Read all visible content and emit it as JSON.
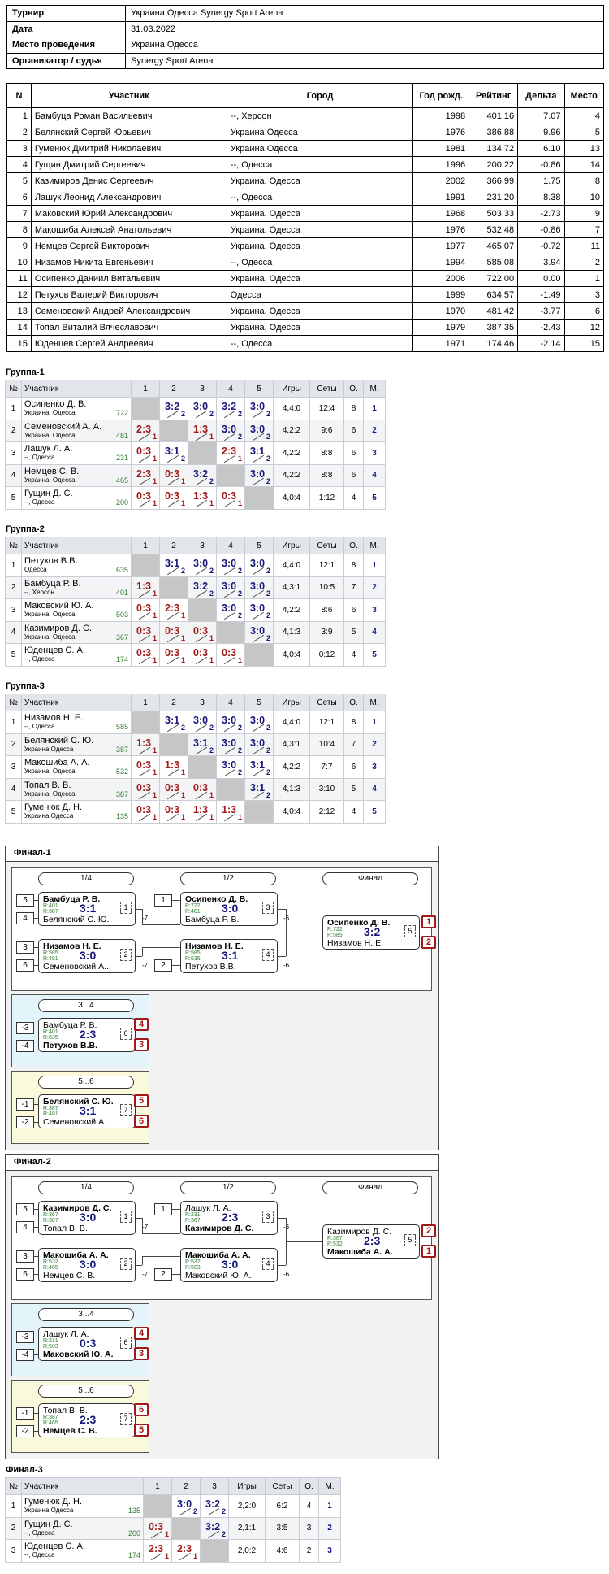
{
  "info": {
    "rows": [
      {
        "k": "Турнир",
        "v": "Украина Одесса Synergy Sport Arena"
      },
      {
        "k": "Дата",
        "v": "31.03.2022"
      },
      {
        "k": "Место проведения",
        "v": "Украина Одесса"
      },
      {
        "k": "Организатор / судья",
        "v": "Synergy Sport Arena"
      }
    ]
  },
  "players": {
    "headers": [
      "N",
      "Участник",
      "Город",
      "Год рожд.",
      "Рейтинг",
      "Дельта",
      "Место"
    ],
    "rows": [
      [
        "1",
        "Бамбуца Роман Васильевич",
        "--, Херсон",
        "1998",
        "401.16",
        "7.07",
        "4"
      ],
      [
        "2",
        "Белянский Сергей Юрьевич",
        "Украина Одесса",
        "1976",
        "386.88",
        "9.96",
        "5"
      ],
      [
        "3",
        "Гуменюк Дмитрий Николаевич",
        "Украина Одесса",
        "1981",
        "134.72",
        "6.10",
        "13"
      ],
      [
        "4",
        "Гущин Дмитрий Сергеевич",
        "--, Одесса",
        "1996",
        "200.22",
        "-0.86",
        "14"
      ],
      [
        "5",
        "Казимиров Денис Сергеевич",
        "Украина, Одесса",
        "2002",
        "366.99",
        "1.75",
        "8"
      ],
      [
        "6",
        "Лашук Леонид Александрович",
        "--, Одесса",
        "1991",
        "231.20",
        "8.38",
        "10"
      ],
      [
        "7",
        "Маковский Юрий Александрович",
        "Украина, Одесса",
        "1968",
        "503.33",
        "-2.73",
        "9"
      ],
      [
        "8",
        "Макошиба Алексей Анатольевич",
        "Украина, Одесса",
        "1976",
        "532.48",
        "-0.86",
        "7"
      ],
      [
        "9",
        "Немцев Сергей Викторович",
        "Украина, Одесса",
        "1977",
        "465.07",
        "-0.72",
        "11"
      ],
      [
        "10",
        "Низамов Никита Евгеньевич",
        "--, Одесса",
        "1994",
        "585.08",
        "3.94",
        "2"
      ],
      [
        "11",
        "Осипенко Даниил Витальевич",
        "Украина, Одесса",
        "2006",
        "722.00",
        "0.00",
        "1"
      ],
      [
        "12",
        "Петухов Валерий Викторович",
        "Одесса",
        "1999",
        "634.57",
        "-1.49",
        "3"
      ],
      [
        "13",
        "Семеновский Андрей Александрович",
        "Украина, Одесса",
        "1970",
        "481.42",
        "-3.77",
        "6"
      ],
      [
        "14",
        "Топал Виталий Вячеславович",
        "Украина, Одесса",
        "1979",
        "387.35",
        "-2.43",
        "12"
      ],
      [
        "15",
        "Юденцев Сергей Андреевич",
        "--, Одесса",
        "1971",
        "174.46",
        "-2.14",
        "15"
      ]
    ]
  },
  "groups": [
    {
      "title": "Группа-1",
      "headers": [
        "№",
        "Участник",
        "1",
        "2",
        "3",
        "4",
        "5",
        "Игры",
        "Сеты",
        "О.",
        "М."
      ],
      "rows": [
        {
          "n": "1",
          "name": "Осипенко Д. В.",
          "city": "Украина, Одесса",
          "rating": "722",
          "cells": [
            null,
            [
              "3:2",
              "2",
              "w"
            ],
            [
              "3:0",
              "2",
              "w"
            ],
            [
              "3:2",
              "2",
              "w"
            ],
            [
              "3:0",
              "2",
              "w"
            ]
          ],
          "games": "4,4:0",
          "sets": "12:4",
          "pts": "8",
          "place": "1"
        },
        {
          "n": "2",
          "name": "Семеновский А. А.",
          "city": "Украина, Одесса",
          "rating": "481",
          "cells": [
            [
              "2:3",
              "1",
              "l"
            ],
            null,
            [
              "1:3",
              "1",
              "l"
            ],
            [
              "3:0",
              "2",
              "w"
            ],
            [
              "3:0",
              "2",
              "w"
            ]
          ],
          "games": "4,2:2",
          "sets": "9:6",
          "pts": "6",
          "place": "2"
        },
        {
          "n": "3",
          "name": "Лашук Л. А.",
          "city": "--, Одесса",
          "rating": "231",
          "cells": [
            [
              "0:3",
              "1",
              "l"
            ],
            [
              "3:1",
              "2",
              "w"
            ],
            null,
            [
              "2:3",
              "1",
              "l"
            ],
            [
              "3:1",
              "2",
              "w"
            ]
          ],
          "games": "4,2:2",
          "sets": "8:8",
          "pts": "6",
          "place": "3"
        },
        {
          "n": "4",
          "name": "Немцев С. В.",
          "city": "Украина, Одесса",
          "rating": "465",
          "cells": [
            [
              "2:3",
              "1",
              "l"
            ],
            [
              "0:3",
              "1",
              "l"
            ],
            [
              "3:2",
              "2",
              "w"
            ],
            null,
            [
              "3:0",
              "2",
              "w"
            ]
          ],
          "games": "4,2:2",
          "sets": "8:8",
          "pts": "6",
          "place": "4"
        },
        {
          "n": "5",
          "name": "Гущин Д. С.",
          "city": "--, Одесса",
          "rating": "200",
          "cells": [
            [
              "0:3",
              "1",
              "l"
            ],
            [
              "0:3",
              "1",
              "l"
            ],
            [
              "1:3",
              "1",
              "l"
            ],
            [
              "0:3",
              "1",
              "l"
            ],
            null
          ],
          "games": "4,0:4",
          "sets": "1:12",
          "pts": "4",
          "place": "5"
        }
      ]
    },
    {
      "title": "Группа-2",
      "headers": [
        "№",
        "Участник",
        "1",
        "2",
        "3",
        "4",
        "5",
        "Игры",
        "Сеты",
        "О.",
        "М."
      ],
      "rows": [
        {
          "n": "1",
          "name": "Петухов В.В.",
          "city": "Одесса",
          "rating": "635",
          "cells": [
            null,
            [
              "3:1",
              "2",
              "w"
            ],
            [
              "3:0",
              "2",
              "w"
            ],
            [
              "3:0",
              "2",
              "w"
            ],
            [
              "3:0",
              "2",
              "w"
            ]
          ],
          "games": "4,4:0",
          "sets": "12:1",
          "pts": "8",
          "place": "1"
        },
        {
          "n": "2",
          "name": "Бамбуца Р. В.",
          "city": "--, Херсон",
          "rating": "401",
          "cells": [
            [
              "1:3",
              "1",
              "l"
            ],
            null,
            [
              "3:2",
              "2",
              "w"
            ],
            [
              "3:0",
              "2",
              "w"
            ],
            [
              "3:0",
              "2",
              "w"
            ]
          ],
          "games": "4,3:1",
          "sets": "10:5",
          "pts": "7",
          "place": "2"
        },
        {
          "n": "3",
          "name": "Маковский Ю. А.",
          "city": "Украина, Одесса",
          "rating": "503",
          "cells": [
            [
              "0:3",
              "1",
              "l"
            ],
            [
              "2:3",
              "1",
              "l"
            ],
            null,
            [
              "3:0",
              "2",
              "w"
            ],
            [
              "3:0",
              "2",
              "w"
            ]
          ],
          "games": "4,2:2",
          "sets": "8:6",
          "pts": "6",
          "place": "3"
        },
        {
          "n": "4",
          "name": "Казимиров Д. С.",
          "city": "Украина, Одесса",
          "rating": "367",
          "cells": [
            [
              "0:3",
              "1",
              "l"
            ],
            [
              "0:3",
              "1",
              "l"
            ],
            [
              "0:3",
              "1",
              "l"
            ],
            null,
            [
              "3:0",
              "2",
              "w"
            ]
          ],
          "games": "4,1:3",
          "sets": "3:9",
          "pts": "5",
          "place": "4"
        },
        {
          "n": "5",
          "name": "Юденцев С. А.",
          "city": "--, Одесса",
          "rating": "174",
          "cells": [
            [
              "0:3",
              "1",
              "l"
            ],
            [
              "0:3",
              "1",
              "l"
            ],
            [
              "0:3",
              "1",
              "l"
            ],
            [
              "0:3",
              "1",
              "l"
            ],
            null
          ],
          "games": "4,0:4",
          "sets": "0:12",
          "pts": "4",
          "place": "5"
        }
      ]
    },
    {
      "title": "Группа-3",
      "headers": [
        "№",
        "Участник",
        "1",
        "2",
        "3",
        "4",
        "5",
        "Игры",
        "Сеты",
        "О.",
        "М."
      ],
      "rows": [
        {
          "n": "1",
          "name": "Низамов Н. Е.",
          "city": "--, Одесса",
          "rating": "585",
          "cells": [
            null,
            [
              "3:1",
              "2",
              "w"
            ],
            [
              "3:0",
              "2",
              "w"
            ],
            [
              "3:0",
              "2",
              "w"
            ],
            [
              "3:0",
              "2",
              "w"
            ]
          ],
          "games": "4,4:0",
          "sets": "12:1",
          "pts": "8",
          "place": "1"
        },
        {
          "n": "2",
          "name": "Белянский С. Ю.",
          "city": "Украина Одесса",
          "rating": "387",
          "cells": [
            [
              "1:3",
              "1",
              "l"
            ],
            null,
            [
              "3:1",
              "2",
              "w"
            ],
            [
              "3:0",
              "2",
              "w"
            ],
            [
              "3:0",
              "2",
              "w"
            ]
          ],
          "games": "4,3:1",
          "sets": "10:4",
          "pts": "7",
          "place": "2"
        },
        {
          "n": "3",
          "name": "Макошиба А. А.",
          "city": "Украина, Одесса",
          "rating": "532",
          "cells": [
            [
              "0:3",
              "1",
              "l"
            ],
            [
              "1:3",
              "1",
              "l"
            ],
            null,
            [
              "3:0",
              "2",
              "w"
            ],
            [
              "3:1",
              "2",
              "w"
            ]
          ],
          "games": "4,2:2",
          "sets": "7:7",
          "pts": "6",
          "place": "3"
        },
        {
          "n": "4",
          "name": "Топал В. В.",
          "city": "Украина, Одесса",
          "rating": "387",
          "cells": [
            [
              "0:3",
              "1",
              "l"
            ],
            [
              "0:3",
              "1",
              "l"
            ],
            [
              "0:3",
              "1",
              "l"
            ],
            null,
            [
              "3:1",
              "2",
              "w"
            ]
          ],
          "games": "4,1:3",
          "sets": "3:10",
          "pts": "5",
          "place": "4"
        },
        {
          "n": "5",
          "name": "Гуменюк Д. Н.",
          "city": "Украина Одесса",
          "rating": "135",
          "cells": [
            [
              "0:3",
              "1",
              "l"
            ],
            [
              "0:3",
              "1",
              "l"
            ],
            [
              "1:3",
              "1",
              "l"
            ],
            [
              "1:3",
              "1",
              "l"
            ],
            null
          ],
          "games": "4,0:4",
          "sets": "2:12",
          "pts": "4",
          "place": "5"
        }
      ]
    }
  ],
  "finals": [
    {
      "title": "Финал-1",
      "rounds": [
        "1/4",
        "1/2",
        "Финал"
      ],
      "third_label": "3...4",
      "fifth_label": "5...6",
      "qf": [
        {
          "seeds": [
            "5",
            "4"
          ],
          "top": "Бамбуца Р. В.",
          "bot": "Белянский С. Ю.",
          "r1": "R:401",
          "r2": "R:387",
          "score": "3:1",
          "num": "1",
          "win": "top",
          "loser_label": "-7"
        },
        {
          "seeds": [
            "3",
            "6"
          ],
          "top": "Низамов Н. Е.",
          "bot": "Семеновский А...",
          "r1": "R:585",
          "r2": "R:481",
          "score": "3:0",
          "num": "2",
          "win": "top",
          "loser_label": "-7"
        }
      ],
      "sf": [
        {
          "seed": "1",
          "top": "Осипенко Д. В.",
          "bot": "Бамбуца Р. В.",
          "r1": "R:722",
          "r2": "R:401",
          "score": "3:0",
          "num": "3",
          "win": "top",
          "loser_label": "-6"
        },
        {
          "seed": "2",
          "top": "Низамов Н. Е.",
          "bot": "Петухов В.В.",
          "r1": "R:585",
          "r2": "R:635",
          "score": "3:1",
          "num": "4",
          "win": "top",
          "loser_label": "-6"
        }
      ],
      "final": {
        "top": "Осипенко Д. В.",
        "bot": "Низамов Н. Е.",
        "r1": "R:722",
        "r2": "R:585",
        "score": "3:2",
        "num": "5",
        "win": "top",
        "places": [
          "1",
          "2"
        ]
      },
      "third": {
        "seeds": [
          "-3",
          "-4"
        ],
        "top": "Бамбуца Р. В.",
        "bot": "Петухов В.В.",
        "r1": "R:401",
        "r2": "R:635",
        "score": "2:3",
        "num": "6",
        "win": "bot",
        "places": [
          "4",
          "3"
        ]
      },
      "fifth": {
        "seeds": [
          "-1",
          "-2"
        ],
        "top": "Белянский С. Ю.",
        "bot": "Семеновский А...",
        "r1": "R:387",
        "r2": "R:481",
        "score": "3:1",
        "num": "7",
        "win": "top",
        "places": [
          "5",
          "6"
        ]
      }
    },
    {
      "title": "Финал-2",
      "rounds": [
        "1/4",
        "1/2",
        "Финал"
      ],
      "third_label": "3...4",
      "fifth_label": "5...6",
      "qf": [
        {
          "seeds": [
            "5",
            "4"
          ],
          "top": "Казимиров Д. С.",
          "bot": "Топал В. В.",
          "r1": "R:367",
          "r2": "R:387",
          "score": "3:0",
          "num": "1",
          "win": "top",
          "loser_label": "-7"
        },
        {
          "seeds": [
            "3",
            "6"
          ],
          "top": "Макошиба А. А.",
          "bot": "Немцев С. В.",
          "r1": "R:532",
          "r2": "R:465",
          "score": "3:0",
          "num": "2",
          "win": "top",
          "loser_label": "-7"
        }
      ],
      "sf": [
        {
          "seed": "1",
          "top": "Лашук Л. А.",
          "bot": "Казимиров Д. С.",
          "r1": "R:231",
          "r2": "R:367",
          "score": "2:3",
          "num": "3",
          "win": "bot",
          "loser_label": "-6"
        },
        {
          "seed": "2",
          "top": "Макошиба А. А.",
          "bot": "Маковский Ю. А.",
          "r1": "R:532",
          "r2": "R:503",
          "score": "3:0",
          "num": "4",
          "win": "top",
          "loser_label": "-6"
        }
      ],
      "final": {
        "top": "Казимиров Д. С.",
        "bot": "Макошиба А. А.",
        "r1": "R:367",
        "r2": "R:532",
        "score": "2:3",
        "num": "5",
        "win": "bot",
        "places": [
          "2",
          "1"
        ]
      },
      "third": {
        "seeds": [
          "-3",
          "-4"
        ],
        "top": "Лашук Л. А.",
        "bot": "Маковский Ю. А.",
        "r1": "R:231",
        "r2": "R:503",
        "score": "0:3",
        "num": "6",
        "win": "bot",
        "places": [
          "4",
          "3"
        ]
      },
      "fifth": {
        "seeds": [
          "-1",
          "-2"
        ],
        "top": "Топал В. В.",
        "bot": "Немцев С. В.",
        "r1": "R:387",
        "r2": "R:465",
        "score": "2:3",
        "num": "7",
        "win": "bot",
        "places": [
          "6",
          "5"
        ]
      }
    }
  ],
  "final3": {
    "title": "Финал-3",
    "headers": [
      "№",
      "Участник",
      "1",
      "2",
      "3",
      "Игры",
      "Сеты",
      "О.",
      "М."
    ],
    "rows": [
      {
        "n": "1",
        "name": "Гуменюк Д. Н.",
        "city": "Украина Одесса",
        "rating": "135",
        "cells": [
          null,
          [
            "3:0",
            "2",
            "w"
          ],
          [
            "3:2",
            "2",
            "w"
          ]
        ],
        "games": "2,2:0",
        "sets": "6:2",
        "pts": "4",
        "place": "1"
      },
      {
        "n": "2",
        "name": "Гущин Д. С.",
        "city": "--, Одесса",
        "rating": "200",
        "cells": [
          [
            "0:3",
            "1",
            "l"
          ],
          null,
          [
            "3:2",
            "2",
            "w"
          ]
        ],
        "games": "2,1:1",
        "sets": "3:5",
        "pts": "3",
        "place": "2"
      },
      {
        "n": "3",
        "name": "Юденцев С. А.",
        "city": "--, Одесса",
        "rating": "174",
        "cells": [
          [
            "2:3",
            "1",
            "l"
          ],
          [
            "2:3",
            "1",
            "l"
          ],
          null
        ],
        "games": "2,0:2",
        "sets": "4:6",
        "pts": "2",
        "place": "3"
      }
    ]
  },
  "colors": {
    "win": "#17177a",
    "loss": "#a01818",
    "rating": "#2e7d32",
    "third_bg": "#e3f4fa",
    "fifth_bg": "#fbf9dc"
  }
}
